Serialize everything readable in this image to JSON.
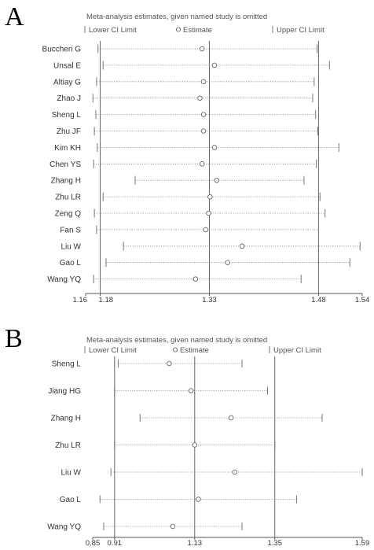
{
  "chart_data": [
    {
      "type": "forest",
      "panel_label": "A",
      "title": "Meta-analysis estimates, given named study is omitted",
      "legend": {
        "lower": "Lower CI Limit",
        "estimate": "Estimate",
        "upper": "Upper CI Limit"
      },
      "xlim": [
        1.16,
        1.54
      ],
      "x_ticks": [
        1.16,
        1.18,
        1.33,
        1.48,
        1.54
      ],
      "x_tick_labels": [
        "1.16",
        "1.18",
        "1.33",
        "1.48",
        "1.54"
      ],
      "reference_lines": [
        1.18,
        1.33,
        1.48
      ],
      "studies": [
        {
          "name": "Buccheri G",
          "lower": 1.177,
          "estimate": 1.32,
          "upper": 1.478
        },
        {
          "name": "Unsal E",
          "lower": 1.184,
          "estimate": 1.337,
          "upper": 1.495
        },
        {
          "name": "Altiay G",
          "lower": 1.175,
          "estimate": 1.322,
          "upper": 1.474
        },
        {
          "name": "Zhao J",
          "lower": 1.17,
          "estimate": 1.317,
          "upper": 1.472
        },
        {
          "name": "Sheng L",
          "lower": 1.174,
          "estimate": 1.322,
          "upper": 1.476
        },
        {
          "name": "Zhu JF",
          "lower": 1.172,
          "estimate": 1.322,
          "upper": 1.479
        },
        {
          "name": "Kim KH",
          "lower": 1.176,
          "estimate": 1.337,
          "upper": 1.508
        },
        {
          "name": "Chen YS",
          "lower": 1.171,
          "estimate": 1.32,
          "upper": 1.477
        },
        {
          "name": "Zhang H",
          "lower": 1.228,
          "estimate": 1.34,
          "upper": 1.46
        },
        {
          "name": "Zhu LR",
          "lower": 1.184,
          "estimate": 1.331,
          "upper": 1.482
        },
        {
          "name": "Zeng Q",
          "lower": 1.172,
          "estimate": 1.329,
          "upper": 1.489
        },
        {
          "name": "Fan S",
          "lower": 1.175,
          "estimate": 1.325,
          "upper": 1.48
        },
        {
          "name": "Liu W",
          "lower": 1.212,
          "estimate": 1.375,
          "upper": 1.537
        },
        {
          "name": "Gao L",
          "lower": 1.188,
          "estimate": 1.355,
          "upper": 1.523
        },
        {
          "name": "Wang YQ",
          "lower": 1.171,
          "estimate": 1.311,
          "upper": 1.456
        }
      ]
    },
    {
      "type": "forest",
      "panel_label": "B",
      "title": "Meta-analysis estimates, given named study is omitted",
      "legend": {
        "lower": "Lower CI Limit",
        "estimate": "Estimate",
        "upper": "Upper CI Limit"
      },
      "xlim": [
        0.85,
        1.59
      ],
      "x_ticks": [
        0.85,
        0.91,
        1.13,
        1.35,
        1.59
      ],
      "x_tick_labels": [
        "0.85",
        "0.91",
        "1.13",
        "1.35",
        "1.59"
      ],
      "reference_lines": [
        0.91,
        1.13,
        1.35
      ],
      "studies": [
        {
          "name": "Sheng L",
          "lower": 0.92,
          "estimate": 1.06,
          "upper": 1.26
        },
        {
          "name": "Jiang HG",
          "lower": 0.91,
          "estimate": 1.12,
          "upper": 1.33
        },
        {
          "name": "Zhang H",
          "lower": 0.98,
          "estimate": 1.23,
          "upper": 1.48
        },
        {
          "name": "Zhu LR",
          "lower": 0.91,
          "estimate": 1.13,
          "upper": 1.35
        },
        {
          "name": "Liu W",
          "lower": 0.9,
          "estimate": 1.24,
          "upper": 1.59
        },
        {
          "name": "Gao L",
          "lower": 0.87,
          "estimate": 1.14,
          "upper": 1.41
        },
        {
          "name": "Wang YQ",
          "lower": 0.88,
          "estimate": 1.07,
          "upper": 1.26
        }
      ]
    }
  ]
}
